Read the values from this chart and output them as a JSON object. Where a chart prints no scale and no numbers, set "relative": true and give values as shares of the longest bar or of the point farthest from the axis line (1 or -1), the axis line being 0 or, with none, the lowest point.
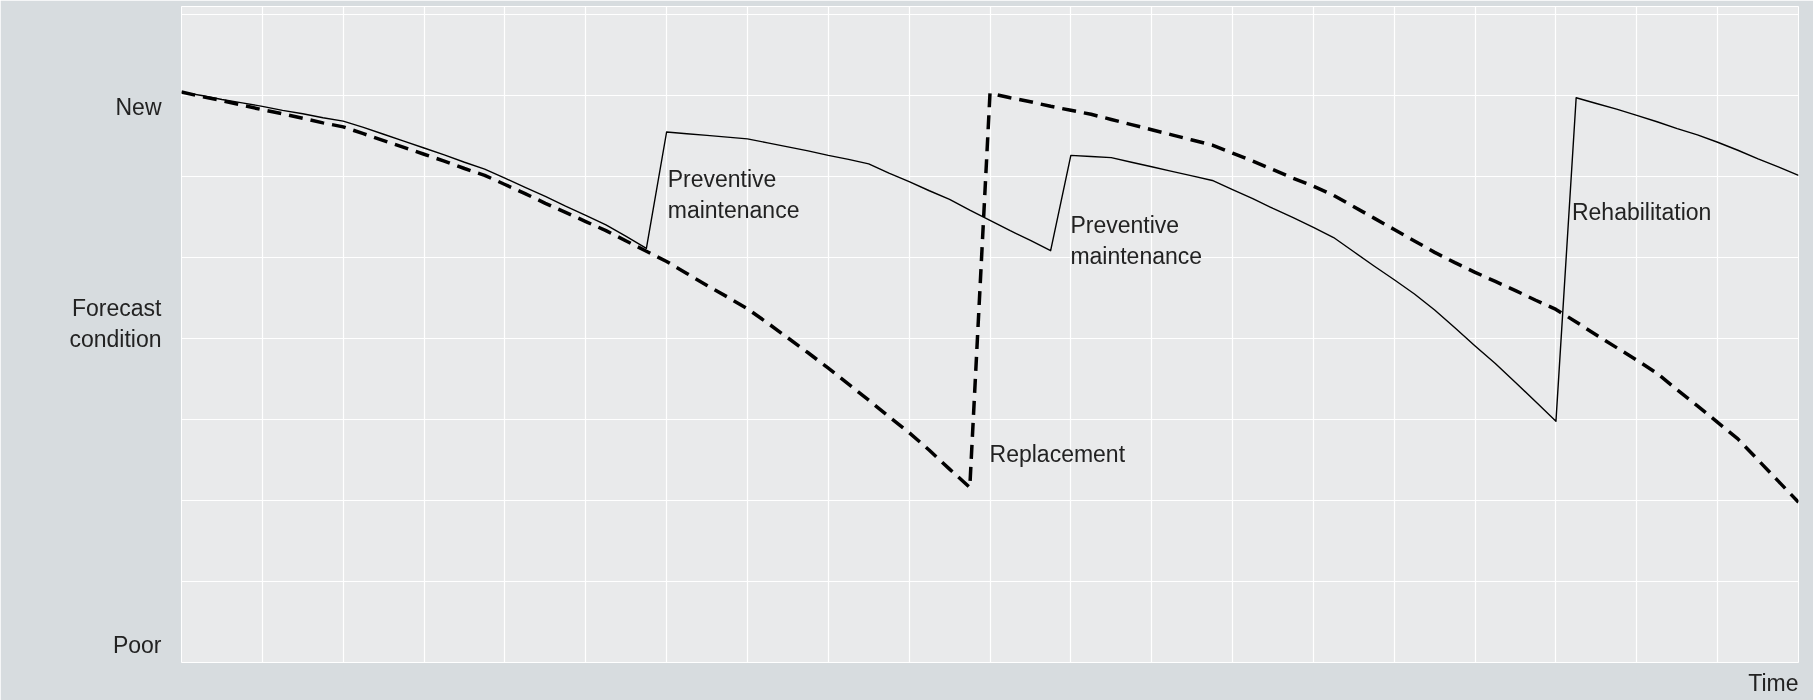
{
  "chart_data": {
    "type": "line",
    "relative": true,
    "xlabel": "Time",
    "grid": true,
    "marker": "none",
    "categories": [
      null,
      null,
      null,
      null,
      null,
      null,
      null,
      null,
      null,
      null,
      null,
      null,
      null,
      null,
      null,
      null,
      null,
      null,
      null,
      null,
      null,
      null,
      null,
      null,
      null,
      null,
      null,
      null,
      null,
      null,
      null,
      null,
      null,
      null,
      null,
      null,
      null,
      null,
      null,
      null,
      null,
      null,
      null,
      null,
      null,
      null,
      null,
      null,
      null,
      null,
      null,
      null,
      null,
      null,
      null,
      null,
      null,
      null,
      null,
      null,
      null,
      null,
      null,
      null,
      null,
      null,
      null,
      null,
      null,
      null,
      null,
      null,
      null,
      null,
      null,
      null,
      null,
      null,
      null,
      null,
      null
    ],
    "series": [
      {
        "color": "#000000",
        "line_style": "solid",
        "values": [
          1.0,
          0.994,
          0.987,
          0.981,
          0.975,
          0.968,
          0.962,
          0.955,
          0.949,
          0.938,
          0.926,
          0.914,
          0.902,
          0.89,
          0.877,
          0.865,
          0.849,
          0.833,
          0.817,
          0.8,
          0.784,
          0.767,
          0.747,
          0.726,
          0.93,
          0.927,
          0.924,
          0.921,
          0.918,
          0.911,
          0.904,
          0.897,
          0.889,
          0.882,
          0.874,
          0.858,
          0.843,
          0.827,
          0.812,
          0.793,
          0.775,
          0.757,
          0.74,
          0.722,
          0.889,
          0.887,
          0.885,
          0.877,
          0.869,
          0.861,
          0.853,
          0.845,
          0.829,
          0.813,
          0.796,
          0.78,
          0.763,
          0.745,
          0.72,
          0.695,
          0.671,
          0.646,
          0.618,
          0.587,
          0.555,
          0.524,
          0.491,
          0.457,
          0.423,
          0.99,
          0.98,
          0.97,
          0.959,
          0.948,
          0.936,
          0.925,
          0.912,
          0.898,
          0.883,
          0.869,
          0.854
        ]
      },
      {
        "color": "#000000",
        "line_style": "dashed",
        "values": [
          1.0,
          0.992,
          0.985,
          0.977,
          0.969,
          0.962,
          0.954,
          0.946,
          0.939,
          0.927,
          0.915,
          0.903,
          0.891,
          0.879,
          0.866,
          0.854,
          0.838,
          0.822,
          0.805,
          0.789,
          0.773,
          0.757,
          0.739,
          0.721,
          0.703,
          0.682,
          0.661,
          0.641,
          0.62,
          0.595,
          0.569,
          0.543,
          0.516,
          0.488,
          0.46,
          0.431,
          0.403,
          0.372,
          0.339,
          0.307,
          0.998,
          0.99,
          0.983,
          0.975,
          0.968,
          0.961,
          0.952,
          0.943,
          0.934,
          0.925,
          0.916,
          0.907,
          0.893,
          0.879,
          0.864,
          0.849,
          0.835,
          0.819,
          0.799,
          0.779,
          0.759,
          0.739,
          0.719,
          0.701,
          0.684,
          0.668,
          0.652,
          0.635,
          0.619,
          0.597,
          0.574,
          0.552,
          0.53,
          0.507,
          0.478,
          0.45,
          0.421,
          0.392,
          0.355,
          0.318,
          0.281
        ]
      }
    ],
    "annotations": [
      "New",
      "Forecast\ncondition",
      "Poor",
      "Preventive\nmaintenance",
      "Preventive\nmaintenance",
      "Replacement",
      "Rehabilitation"
    ]
  }
}
